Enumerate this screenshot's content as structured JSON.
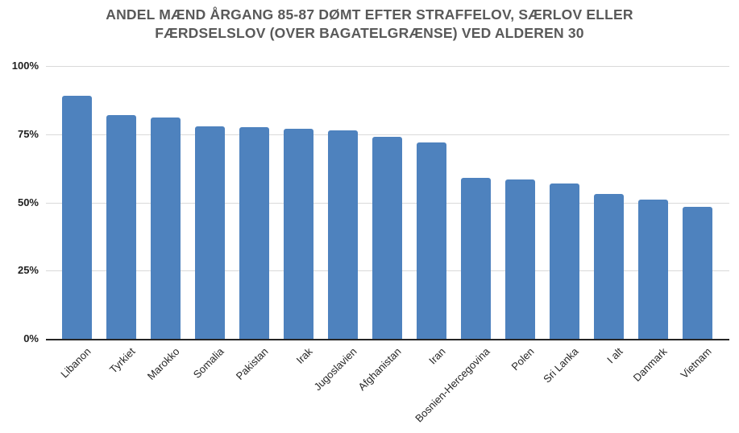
{
  "chart_data": {
    "type": "bar",
    "title": "ANDEL MÆND ÅRGANG 85-87 DØMT EFTER STRAFFELOV, SÆRLOV ELLER FÆRDSELSLOV (OVER BAGATELGRÆNSE) VED ALDEREN 30",
    "title_lines": [
      "ANDEL MÆND ÅRGANG 85-87 DØMT EFTER STRAFFELOV, SÆRLOV ELLER",
      "FÆRDSELSLOV (OVER BAGATELGRÆNSE) VED ALDEREN 30"
    ],
    "categories": [
      "Libanon",
      "Tyrkiet",
      "Marokko",
      "Somalia",
      "Pakistan",
      "Irak",
      "Jugoslavien",
      "Afghanistan",
      "Iran",
      "Bosnien-Hercegovina",
      "Polen",
      "Sri Lanka",
      "I alt",
      "Danmark",
      "Vietnam"
    ],
    "values": [
      89,
      82,
      81,
      78,
      77.5,
      77,
      76.5,
      74,
      72,
      59,
      58.5,
      57,
      53,
      51,
      48.5
    ],
    "xlabel": "",
    "ylabel": "",
    "ylim": [
      0,
      100
    ],
    "ytick_values": [
      0,
      25,
      50,
      75,
      100
    ],
    "ytick_labels": [
      "0%",
      "25%",
      "50%",
      "75%",
      "100%"
    ],
    "grid": "horizontal",
    "legend": "none"
  },
  "colors": {
    "bar": "#4e82be",
    "title": "#595959",
    "gridline": "#d9d9d9",
    "axis_line": "#262626",
    "tick_label": "#1f1f1f",
    "background": "#ffffff"
  }
}
